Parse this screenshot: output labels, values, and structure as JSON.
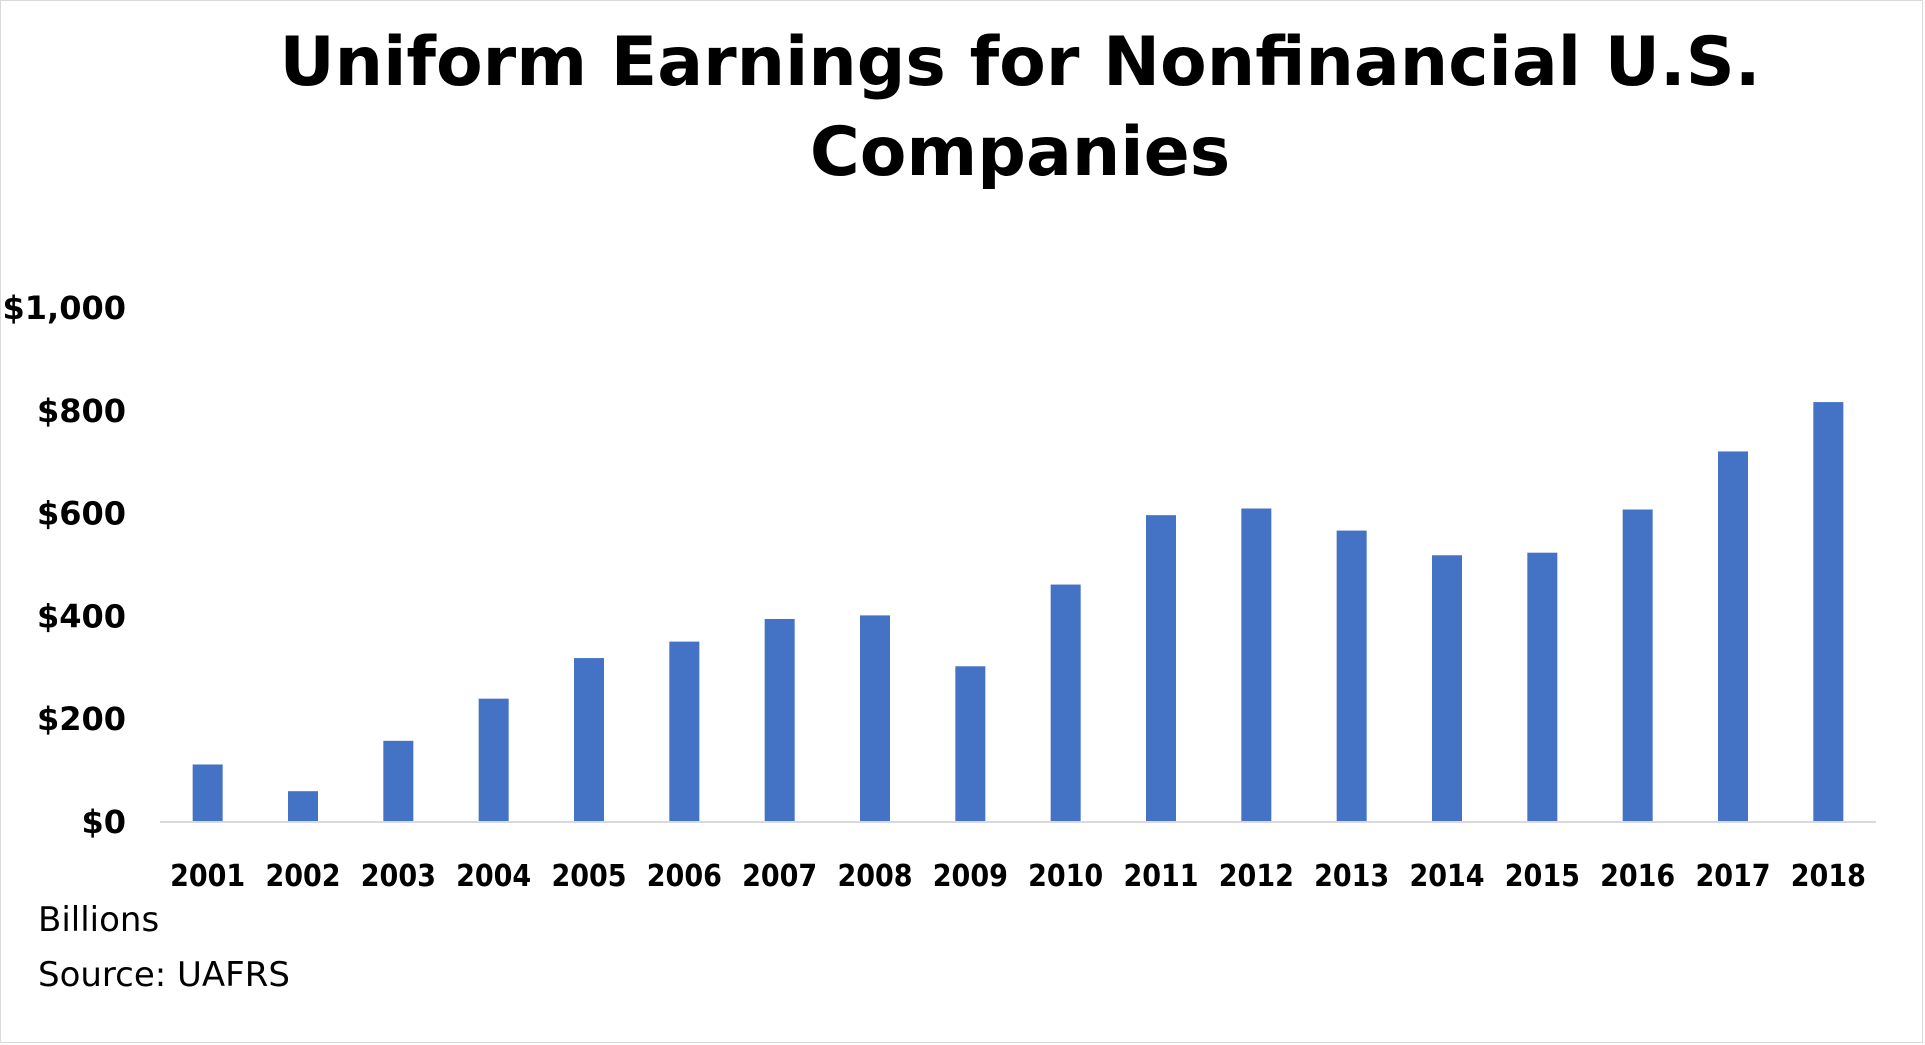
{
  "chart_data": {
    "type": "bar",
    "title": "Uniform Earnings for Nonfinancial U.S. Companies",
    "categories": [
      "2001",
      "2002",
      "2003",
      "2004",
      "2005",
      "2006",
      "2007",
      "2008",
      "2009",
      "2010",
      "2011",
      "2012",
      "2013",
      "2014",
      "2015",
      "2016",
      "2017",
      "2018"
    ],
    "series": [
      {
        "values": [
          110,
          58,
          156,
          238,
          317,
          349,
          393,
          400,
          301,
          460,
          595,
          608,
          565,
          517,
          522,
          606,
          719,
          815
        ],
        "color": "#4472c4"
      }
    ],
    "ylim": [
      0,
      1000
    ],
    "yticks": [
      0,
      200,
      400,
      600,
      800,
      1000
    ],
    "ytick_labels": [
      "$0",
      "$200",
      "$400",
      "$600",
      "$800",
      "$1,000"
    ],
    "xlabel": "",
    "ylabel": "",
    "grid": false,
    "legend": "none"
  },
  "notes": {
    "units": "Billions",
    "source": "Source: UAFRS"
  }
}
